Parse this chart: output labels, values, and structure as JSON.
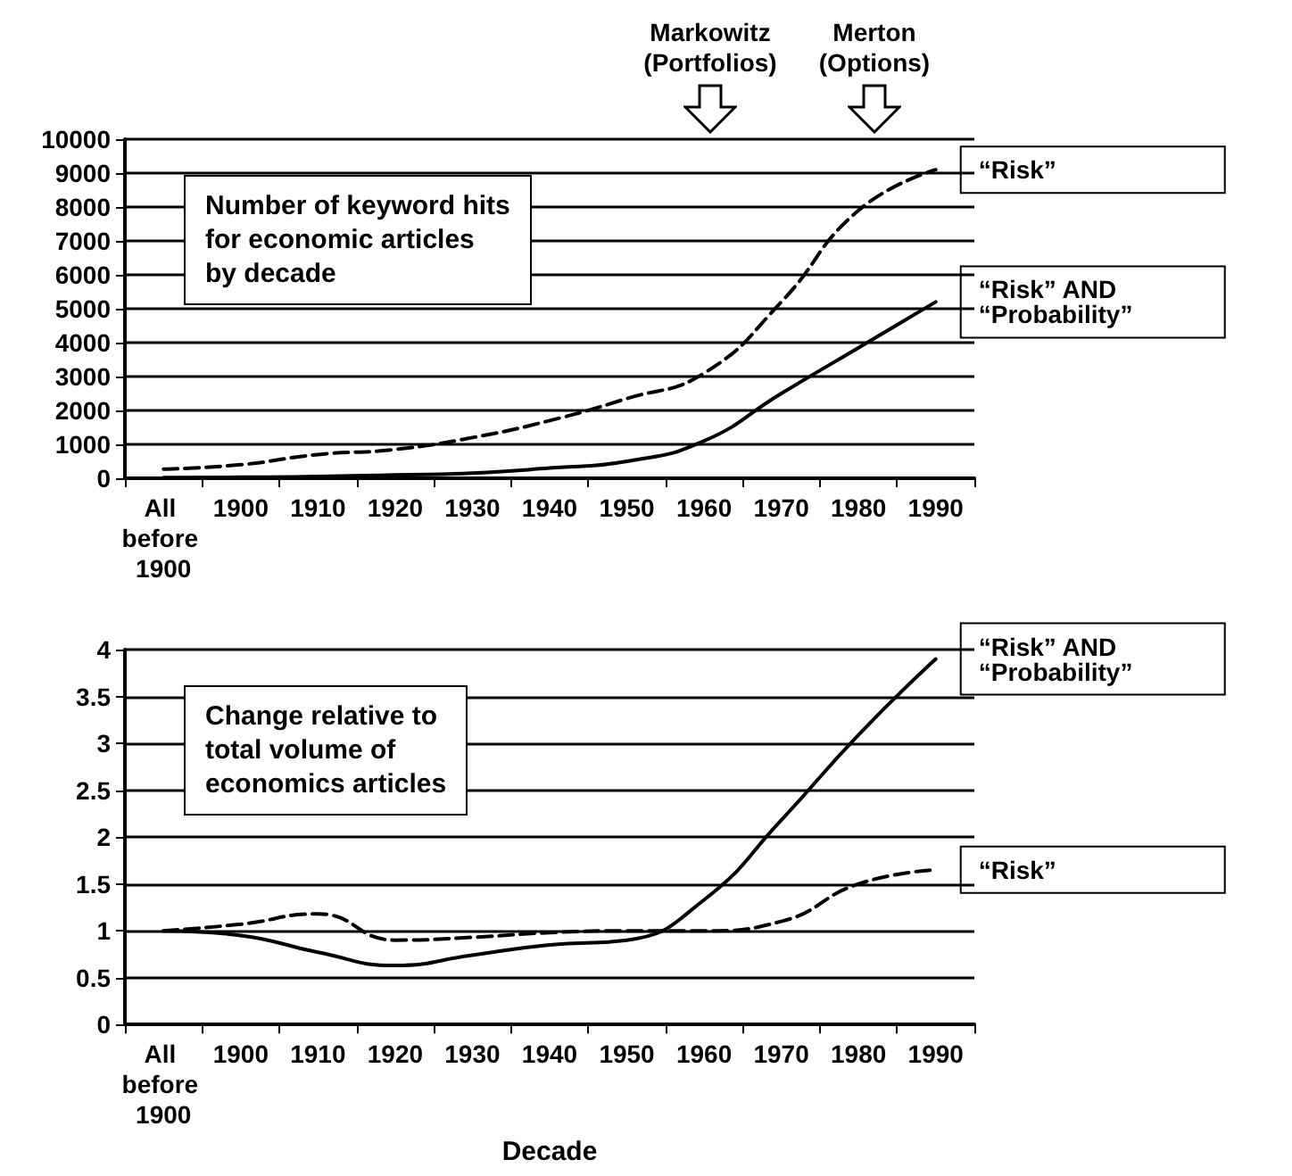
{
  "chart_data": [
    {
      "type": "line",
      "title": "Number of keyword hits\nfor economic articles\nby decade",
      "categories": [
        "All before 1900",
        "1900",
        "1910",
        "1920",
        "1930",
        "1940",
        "1950",
        "1960",
        "1970",
        "1980",
        "1990"
      ],
      "series": [
        {
          "name": "“Risk”",
          "color": "#000000",
          "line_style": "dashed",
          "values": [
            270,
            400,
            700,
            850,
            1200,
            1700,
            2350,
            3100,
            5200,
            7900,
            9100
          ]
        },
        {
          "name": "“Risk” AND “Probability”",
          "color": "#000000",
          "line_style": "solid",
          "values": [
            20,
            30,
            50,
            100,
            150,
            300,
            500,
            1100,
            2500,
            3850,
            5200
          ]
        }
      ],
      "ylim": [
        0,
        10000
      ],
      "yticks": [
        0,
        1000,
        2000,
        3000,
        4000,
        5000,
        6000,
        7000,
        8000,
        9000,
        10000
      ],
      "grid": "y",
      "marker": "none",
      "annotations": [
        "Markowitz\n(Portfolios)",
        "Merton\n(Options)"
      ]
    },
    {
      "type": "line",
      "title": "Change relative to\ntotal volume of\neconomics articles",
      "xlabel": "Decade",
      "categories": [
        "All before 1900",
        "1900",
        "1910",
        "1920",
        "1930",
        "1940",
        "1950",
        "1960",
        "1970",
        "1980",
        "1990"
      ],
      "series": [
        {
          "name": "“Risk” AND “Probability”",
          "color": "#000000",
          "line_style": "solid",
          "values": [
            1.0,
            0.95,
            0.77,
            0.63,
            0.74,
            0.85,
            0.9,
            1.33,
            2.18,
            3.09,
            3.9
          ]
        },
        {
          "name": "“Risk”",
          "color": "#000000",
          "line_style": "dashed",
          "values": [
            1.0,
            1.07,
            1.18,
            0.9,
            0.93,
            0.98,
            1.0,
            1.0,
            1.1,
            1.5,
            1.65
          ]
        }
      ],
      "ylim": [
        0,
        4
      ],
      "yticks": [
        0,
        0.5,
        1,
        1.5,
        2,
        2.5,
        3,
        3.5,
        4
      ],
      "grid": "y",
      "marker": "none"
    }
  ]
}
